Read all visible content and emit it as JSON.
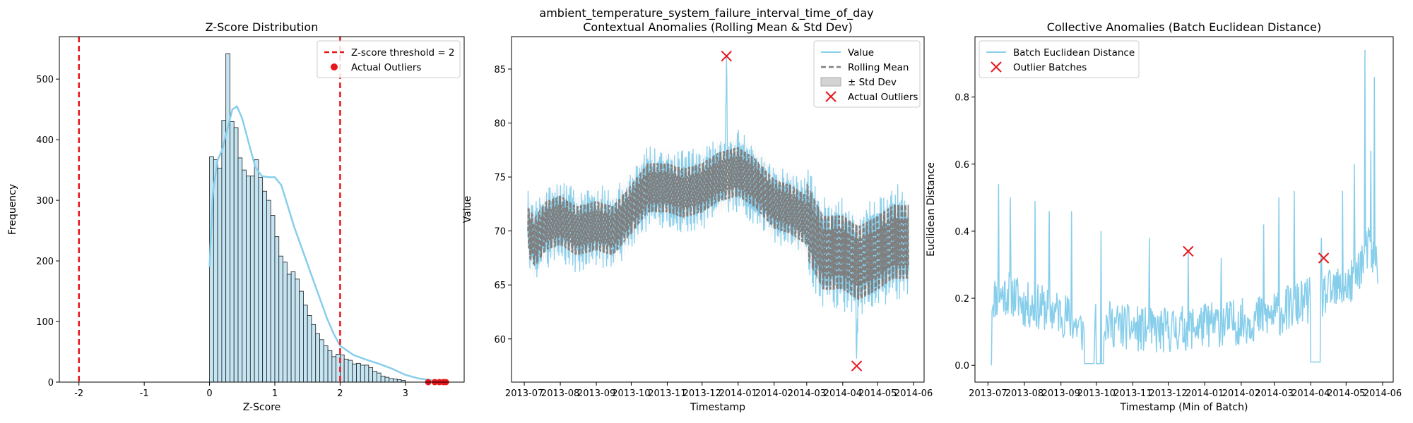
{
  "suptitle": "ambient_temperature_system_failure_interval_time_of_day",
  "chart_data": [
    {
      "type": "bar",
      "title": "Z-Score Distribution",
      "xlabel": "Z-Score",
      "ylabel": "Frequency",
      "xlim": [
        -2.3,
        3.9
      ],
      "ylim": [
        0,
        570
      ],
      "xticks": [
        -2,
        -1,
        0,
        1,
        2,
        3
      ],
      "yticks": [
        0,
        100,
        200,
        300,
        400,
        500
      ],
      "bin_start": 0.0,
      "bin_width": 0.0625,
      "counts": [
        372,
        367,
        353,
        432,
        542,
        430,
        420,
        370,
        350,
        340,
        340,
        367,
        338,
        315,
        300,
        275,
        240,
        208,
        198,
        178,
        182,
        170,
        150,
        127,
        110,
        95,
        80,
        70,
        60,
        52,
        42,
        46,
        45,
        38,
        36,
        30,
        31,
        28,
        28,
        24,
        18,
        15,
        10,
        8,
        6,
        5,
        4,
        3
      ],
      "kde": [
        [
          0,
          190
        ],
        [
          0.05,
          310
        ],
        [
          0.12,
          365
        ],
        [
          0.2,
          385
        ],
        [
          0.28,
          420
        ],
        [
          0.35,
          450
        ],
        [
          0.42,
          455
        ],
        [
          0.5,
          435
        ],
        [
          0.6,
          395
        ],
        [
          0.7,
          355
        ],
        [
          0.8,
          340
        ],
        [
          0.9,
          338
        ],
        [
          1.0,
          338
        ],
        [
          1.1,
          325
        ],
        [
          1.2,
          290
        ],
        [
          1.3,
          255
        ],
        [
          1.4,
          225
        ],
        [
          1.5,
          195
        ],
        [
          1.6,
          165
        ],
        [
          1.7,
          135
        ],
        [
          1.8,
          105
        ],
        [
          1.9,
          80
        ],
        [
          2.0,
          60
        ],
        [
          2.2,
          45
        ],
        [
          2.4,
          37
        ],
        [
          2.6,
          30
        ],
        [
          2.8,
          22
        ],
        [
          3.0,
          12
        ],
        [
          3.2,
          6
        ],
        [
          3.4,
          3
        ],
        [
          3.6,
          1
        ]
      ],
      "threshold_lines": [
        -2,
        2
      ],
      "outliers_x": [
        3.35,
        3.45,
        3.52,
        3.58,
        3.62
      ],
      "legend": [
        {
          "label": "Z-score threshold = 2",
          "color": "#e8161b",
          "kind": "dashed-line"
        },
        {
          "label": "Actual Outliers",
          "color": "#e8161b",
          "kind": "dot"
        }
      ],
      "legend_position": "top-right",
      "colors": {
        "bar_fill": "#c5e5f3",
        "bar_edge": "#1a1a1a",
        "kde": "#87ceeb",
        "threshold": "#e8161b"
      }
    },
    {
      "type": "line",
      "title": "Contextual Anomalies (Rolling Mean & Std Dev)",
      "xlabel": "Timestamp",
      "ylabel": "Value",
      "x_range": [
        "2013-06-20",
        "2014-06-10"
      ],
      "ylim": [
        56,
        88
      ],
      "xtick_labels": [
        "2013-07",
        "2013-08",
        "2013-09",
        "2013-10",
        "2013-11",
        "2013-12",
        "2014-01",
        "2014-02",
        "2014-03",
        "2014-04",
        "2014-05",
        "2014-06"
      ],
      "xtick_dates": [
        "2013-07-01",
        "2013-08-01",
        "2013-09-01",
        "2013-10-01",
        "2013-11-01",
        "2013-12-01",
        "2014-01-01",
        "2014-02-01",
        "2014-03-01",
        "2014-04-01",
        "2014-05-01",
        "2014-06-01"
      ],
      "yticks": [
        60,
        65,
        70,
        75,
        80,
        85
      ],
      "trend": [
        [
          "2013-07-04",
          70
        ],
        [
          "2013-07-10",
          69
        ],
        [
          "2013-07-20",
          70.5
        ],
        [
          "2013-08-01",
          71
        ],
        [
          "2013-08-15",
          70
        ],
        [
          "2013-09-01",
          70.5
        ],
        [
          "2013-09-15",
          70
        ],
        [
          "2013-10-01",
          72
        ],
        [
          "2013-10-15",
          74
        ],
        [
          "2013-11-01",
          74
        ],
        [
          "2013-11-15",
          73.5
        ],
        [
          "2013-12-01",
          74
        ],
        [
          "2013-12-15",
          75
        ],
        [
          "2014-01-01",
          75.5
        ],
        [
          "2014-01-15",
          74.5
        ],
        [
          "2014-02-01",
          72.5
        ],
        [
          "2014-02-15",
          72
        ],
        [
          "2014-03-01",
          71
        ],
        [
          "2014-03-15",
          68
        ],
        [
          "2014-04-01",
          68
        ],
        [
          "2014-04-15",
          67
        ],
        [
          "2014-05-01",
          68
        ],
        [
          "2014-05-15",
          69
        ],
        [
          "2014-05-28",
          69
        ]
      ],
      "outliers": [
        [
          "2013-12-22",
          86.2
        ],
        [
          "2014-04-13",
          57.5
        ]
      ],
      "legend": [
        {
          "label": "Value",
          "color": "#87ceeb",
          "kind": "line"
        },
        {
          "label": "Rolling Mean",
          "color": "#808080",
          "kind": "dashed-line"
        },
        {
          "label": "± Std Dev",
          "color": "#d3d3d3",
          "kind": "patch"
        },
        {
          "label": "Actual Outliers",
          "color": "#e8161b",
          "kind": "x"
        }
      ],
      "legend_position": "top-right",
      "colors": {
        "value": "#87ceeb",
        "mean": "#7f7f7f",
        "band": "#d3d3d3",
        "outlier": "#e8161b"
      }
    },
    {
      "type": "line",
      "title": "Collective Anomalies (Batch Euclidean Distance)",
      "xlabel": "Timestamp (Min of Batch)",
      "ylabel": "Euclidean Distance",
      "x_range": [
        "2013-06-20",
        "2014-06-10"
      ],
      "ylim": [
        -0.05,
        0.98
      ],
      "xtick_labels": [
        "2013-07",
        "2013-08",
        "2013-09",
        "2013-10",
        "2013-11",
        "2013-12",
        "2014-01",
        "2014-02",
        "2014-03",
        "2014-04",
        "2014-05",
        "2014-06"
      ],
      "xtick_dates": [
        "2013-07-01",
        "2013-08-01",
        "2013-09-01",
        "2013-10-01",
        "2013-11-01",
        "2013-12-01",
        "2014-01-01",
        "2014-02-01",
        "2014-03-01",
        "2014-04-01",
        "2014-05-01",
        "2014-06-01"
      ],
      "yticks": [
        0.0,
        0.2,
        0.4,
        0.6,
        0.8
      ],
      "ytick_labels": [
        "0.0",
        "0.2",
        "0.4",
        "0.6",
        "0.8"
      ],
      "trend": [
        [
          "2013-07-04",
          0.2
        ],
        [
          "2013-07-20",
          0.22
        ],
        [
          "2013-08-01",
          0.18
        ],
        [
          "2013-08-20",
          0.17
        ],
        [
          "2013-09-05",
          0.15
        ],
        [
          "2013-09-20",
          0.1
        ],
        [
          "2013-10-01",
          0.13
        ],
        [
          "2013-10-20",
          0.12
        ],
        [
          "2013-11-01",
          0.11
        ],
        [
          "2013-11-20",
          0.1
        ],
        [
          "2013-12-10",
          0.11
        ],
        [
          "2014-01-01",
          0.12
        ],
        [
          "2014-02-01",
          0.13
        ],
        [
          "2014-03-01",
          0.15
        ],
        [
          "2014-03-20",
          0.18
        ],
        [
          "2014-04-05",
          0.2
        ],
        [
          "2014-04-20",
          0.22
        ],
        [
          "2014-05-05",
          0.24
        ],
        [
          "2014-05-20",
          0.35
        ],
        [
          "2014-05-28",
          0.3
        ]
      ],
      "spikes": [
        [
          "2013-07-10",
          0.54
        ],
        [
          "2013-07-20",
          0.5
        ],
        [
          "2013-08-10",
          0.49
        ],
        [
          "2013-08-22",
          0.46
        ],
        [
          "2013-09-10",
          0.46
        ],
        [
          "2013-10-05",
          0.4
        ],
        [
          "2013-11-15",
          0.38
        ],
        [
          "2013-12-18",
          0.34
        ],
        [
          "2014-01-15",
          0.32
        ],
        [
          "2014-02-20",
          0.42
        ],
        [
          "2014-03-05",
          0.5
        ],
        [
          "2014-03-18",
          0.52
        ],
        [
          "2014-04-10",
          0.38
        ],
        [
          "2014-04-28",
          0.52
        ],
        [
          "2014-05-08",
          0.6
        ],
        [
          "2014-05-17",
          0.94
        ],
        [
          "2014-05-22",
          0.64
        ],
        [
          "2014-05-25",
          0.86
        ]
      ],
      "flat_segments": [
        [
          "2013-09-21",
          "2013-09-29",
          0.005
        ],
        [
          "2013-10-01",
          "2013-10-07",
          0.005
        ],
        [
          "2014-04-01",
          "2014-04-09",
          0.01
        ]
      ],
      "outliers": [
        [
          "2013-12-18",
          0.34
        ],
        [
          "2014-04-12",
          0.32
        ]
      ],
      "legend": [
        {
          "label": "Batch Euclidean Distance",
          "color": "#87ceeb",
          "kind": "line"
        },
        {
          "label": "Outlier Batches",
          "color": "#e8161b",
          "kind": "x"
        }
      ],
      "legend_position": "top-left",
      "colors": {
        "line": "#87ceeb",
        "outlier": "#e8161b"
      }
    }
  ]
}
